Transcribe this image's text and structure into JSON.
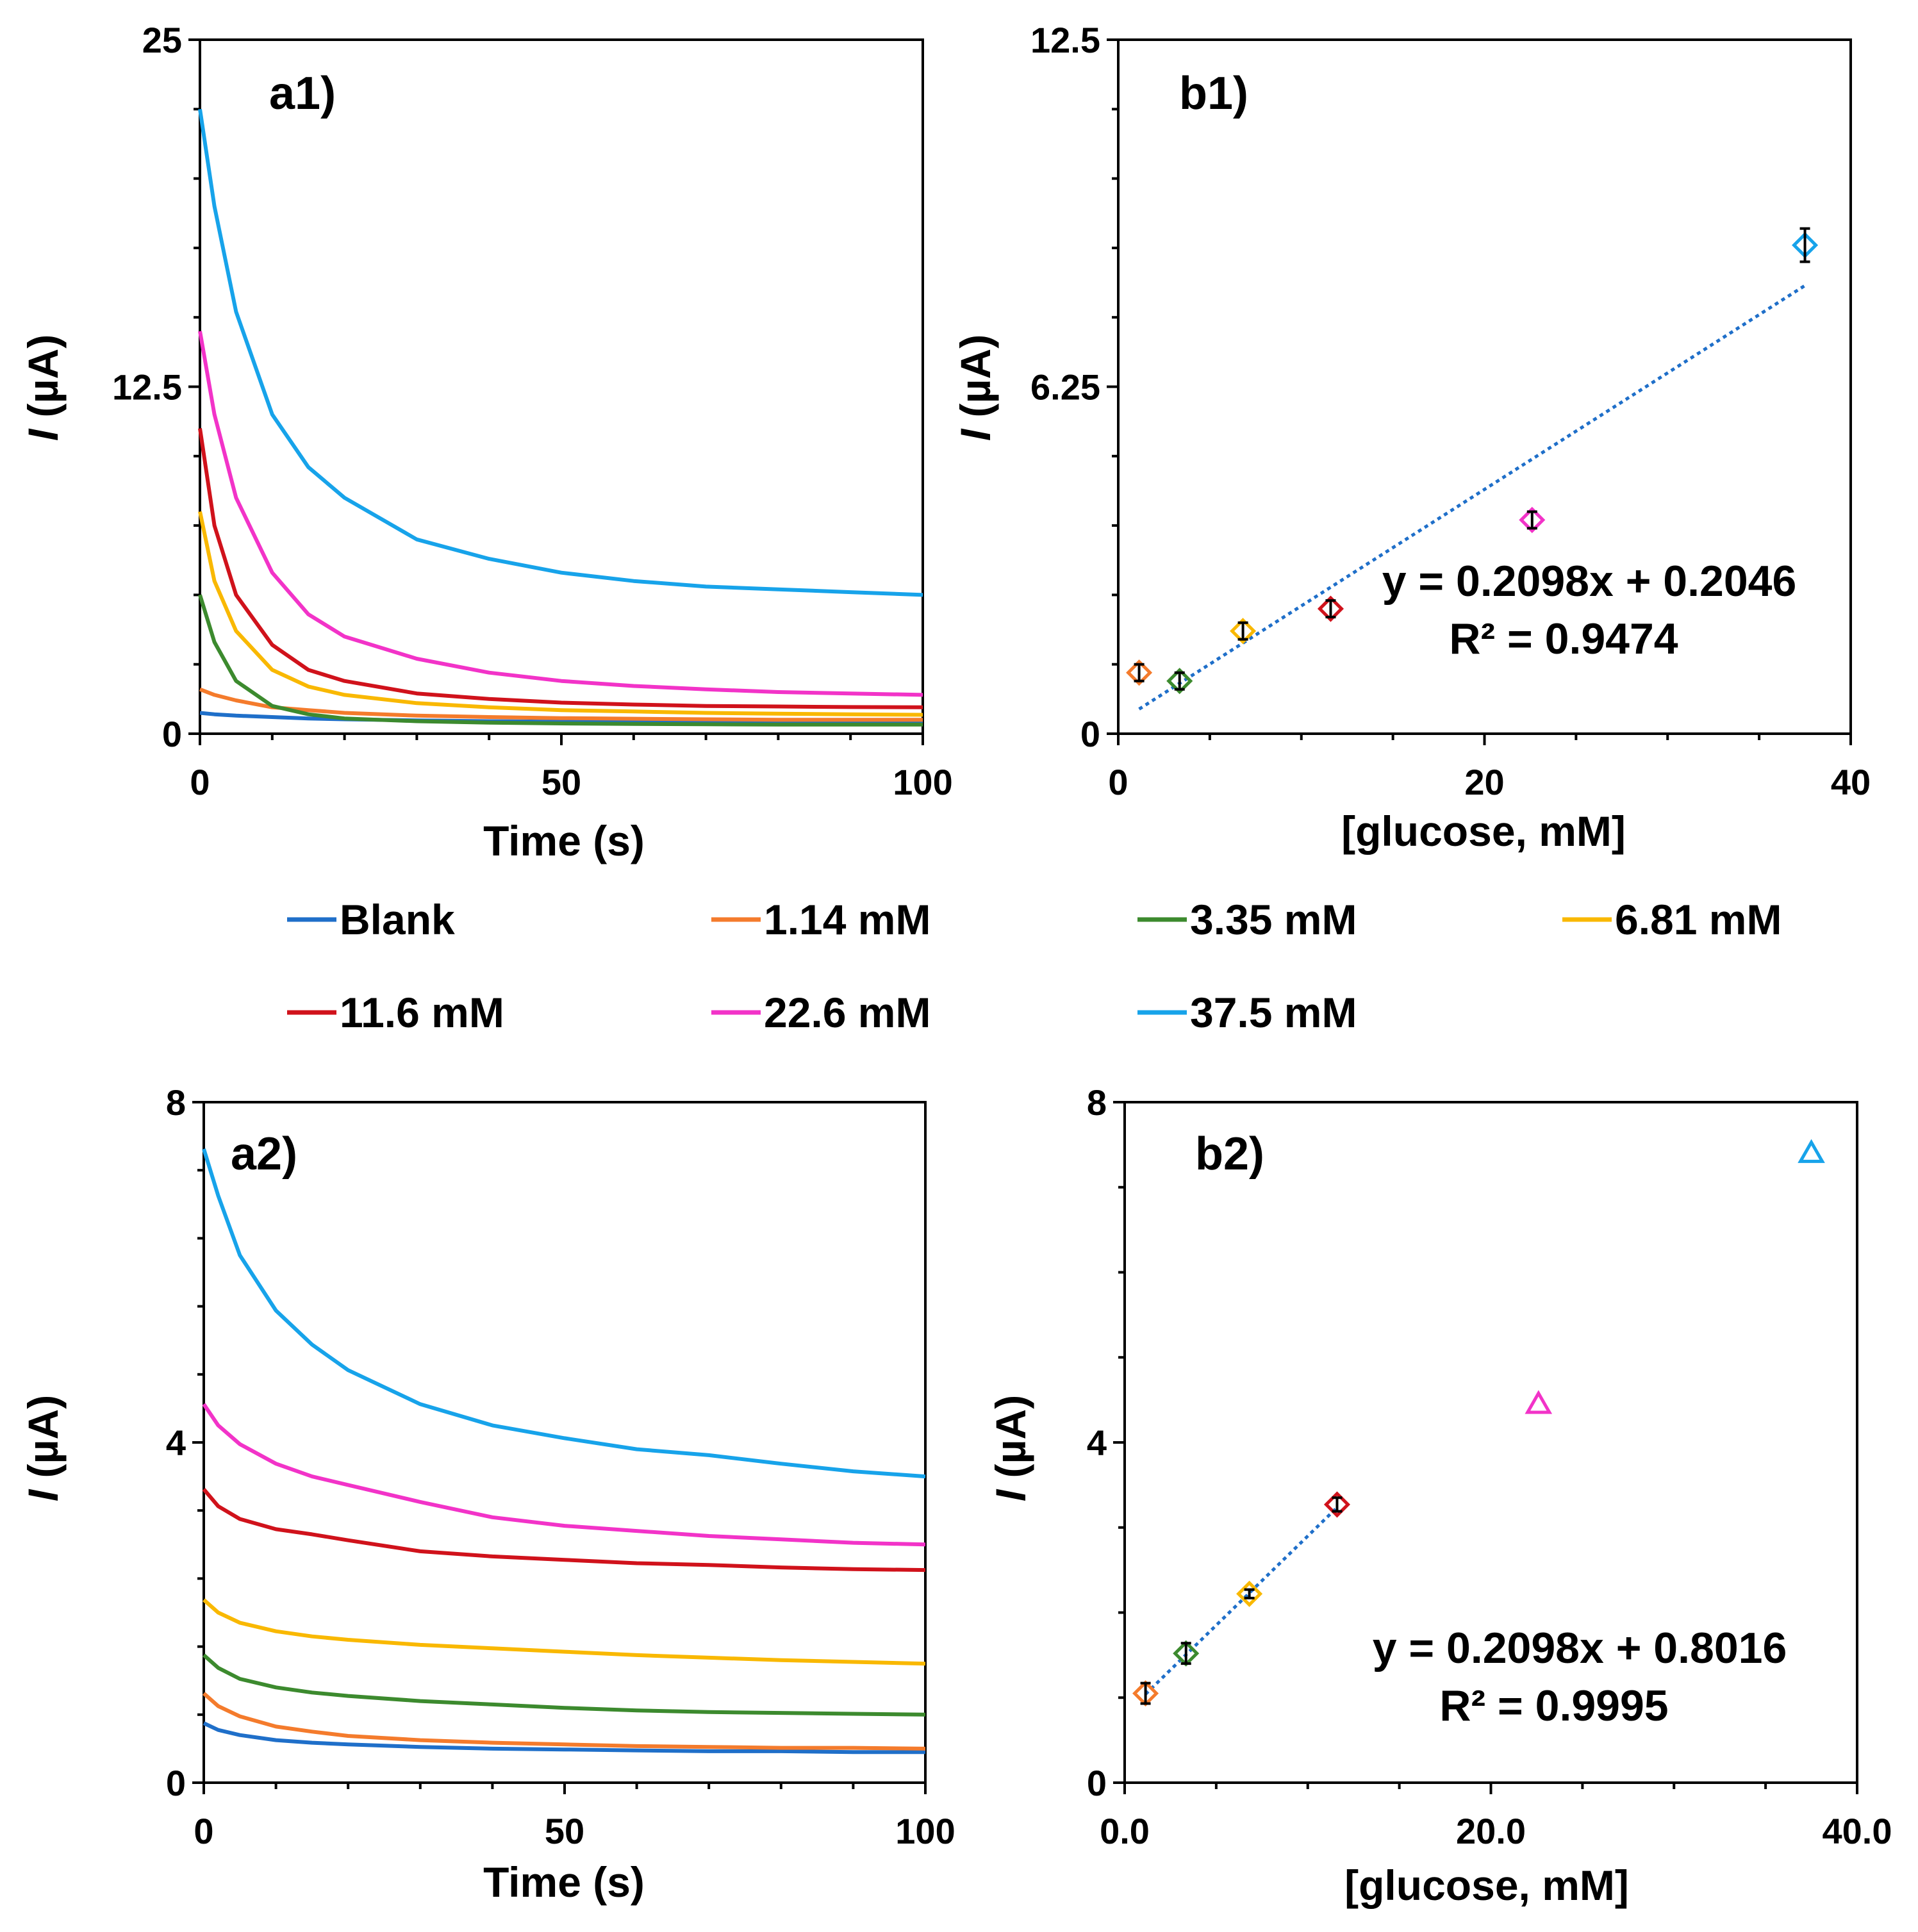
{
  "colors": {
    "blank": "#1f6fc9",
    "c114": "#f47b2c",
    "c335": "#3c8a2e",
    "c681": "#f9b800",
    "c116": "#d0121b",
    "c226": "#f233c8",
    "c375": "#17a3ea",
    "trend": "#1f6fc9"
  },
  "legend": {
    "items": [
      {
        "label": "Blank",
        "color": "#1f6fc9"
      },
      {
        "label": "1.14 mM",
        "color": "#f47b2c"
      },
      {
        "label": "3.35 mM",
        "color": "#3c8a2e"
      },
      {
        "label": "6.81 mM",
        "color": "#f9b800"
      },
      {
        "label": "11.6 mM",
        "color": "#d0121b"
      },
      {
        "label": "22.6 mM",
        "color": "#f233c8"
      },
      {
        "label": "37.5 mM",
        "color": "#17a3ea"
      }
    ]
  },
  "chart_data": [
    {
      "id": "a1",
      "type": "line",
      "panel_label": "a1)",
      "xlabel": "Time (s)",
      "ylabel_italic": "I",
      "ylabel_rest": " (µA)",
      "xlim": [
        0,
        100
      ],
      "ylim": [
        0,
        25
      ],
      "xticks": [
        0,
        50,
        100
      ],
      "xtick_labels": [
        "0",
        "50",
        "100"
      ],
      "yticks": [
        0,
        12.5,
        25
      ],
      "ytick_labels": [
        "0",
        "12.5",
        "25"
      ],
      "x": [
        0,
        2,
        5,
        10,
        15,
        20,
        30,
        40,
        50,
        60,
        70,
        80,
        90,
        100
      ],
      "series": [
        {
          "name": "Blank",
          "color": "#1f6fc9",
          "values": [
            0.75,
            0.7,
            0.65,
            0.6,
            0.55,
            0.52,
            0.48,
            0.45,
            0.43,
            0.42,
            0.41,
            0.4,
            0.39,
            0.38
          ]
        },
        {
          "name": "1.14 mM",
          "color": "#f47b2c",
          "values": [
            1.6,
            1.4,
            1.2,
            0.95,
            0.85,
            0.75,
            0.65,
            0.6,
            0.56,
            0.54,
            0.52,
            0.5,
            0.5,
            0.5
          ]
        },
        {
          "name": "3.35 mM",
          "color": "#3c8a2e",
          "values": [
            5.0,
            3.3,
            1.9,
            1.0,
            0.7,
            0.55,
            0.45,
            0.4,
            0.37,
            0.35,
            0.34,
            0.33,
            0.33,
            0.33
          ]
        },
        {
          "name": "6.81 mM",
          "color": "#f9b800",
          "values": [
            8.0,
            5.5,
            3.7,
            2.3,
            1.7,
            1.4,
            1.1,
            0.95,
            0.85,
            0.8,
            0.75,
            0.72,
            0.7,
            0.68
          ]
        },
        {
          "name": "11.6 mM",
          "color": "#d0121b",
          "values": [
            11.0,
            7.5,
            5.0,
            3.2,
            2.3,
            1.9,
            1.45,
            1.25,
            1.12,
            1.05,
            1.0,
            0.98,
            0.96,
            0.95
          ]
        },
        {
          "name": "22.6 mM",
          "color": "#f233c8",
          "values": [
            14.5,
            11.5,
            8.5,
            5.8,
            4.3,
            3.5,
            2.7,
            2.2,
            1.9,
            1.72,
            1.6,
            1.5,
            1.45,
            1.4
          ]
        },
        {
          "name": "37.5 mM",
          "color": "#17a3ea",
          "values": [
            22.5,
            19.0,
            15.2,
            11.5,
            9.6,
            8.5,
            7.0,
            6.3,
            5.8,
            5.5,
            5.3,
            5.2,
            5.1,
            5.0
          ]
        }
      ]
    },
    {
      "id": "b1",
      "type": "scatter",
      "panel_label": "b1)",
      "xlabel": "[glucose, mM]",
      "ylabel_italic": "I",
      "ylabel_rest": " (µA)",
      "xlim": [
        0,
        40
      ],
      "ylim": [
        0,
        12.5
      ],
      "xticks": [
        0,
        20,
        40
      ],
      "xtick_labels": [
        "0",
        "20",
        "40"
      ],
      "yticks": [
        0,
        6.25,
        12.5
      ],
      "ytick_labels": [
        "0",
        "6.25",
        "12.5"
      ],
      "points": [
        {
          "x": 1.14,
          "y": 1.1,
          "err": 0.15,
          "color": "#f47b2c"
        },
        {
          "x": 3.35,
          "y": 0.95,
          "err": 0.15,
          "color": "#3c8a2e"
        },
        {
          "x": 6.81,
          "y": 1.85,
          "err": 0.15,
          "color": "#f9b800"
        },
        {
          "x": 11.6,
          "y": 2.25,
          "err": 0.15,
          "color": "#d0121b"
        },
        {
          "x": 22.6,
          "y": 3.85,
          "err": 0.15,
          "color": "#f233c8"
        },
        {
          "x": 37.5,
          "y": 8.8,
          "err": 0.3,
          "color": "#17a3ea"
        }
      ],
      "trendline": {
        "slope": 0.2098,
        "intercept": 0.2046,
        "x_range": [
          1.14,
          37.5
        ]
      },
      "equation": "y = 0.2098x + 0.2046",
      "r2": "R² = 0.9474"
    },
    {
      "id": "a2",
      "type": "line",
      "panel_label": "a2)",
      "xlabel": "Time (s)",
      "ylabel_italic": "I",
      "ylabel_rest": " (µA)",
      "xlim": [
        0,
        100
      ],
      "ylim": [
        0,
        8
      ],
      "xticks": [
        0,
        50,
        100
      ],
      "xtick_labels": [
        "0",
        "50",
        "100"
      ],
      "yticks": [
        0,
        4,
        8
      ],
      "ytick_labels": [
        "0",
        "4",
        "8"
      ],
      "x": [
        0,
        2,
        5,
        10,
        15,
        20,
        30,
        40,
        50,
        60,
        70,
        80,
        90,
        100
      ],
      "series": [
        {
          "name": "Blank",
          "color": "#1f6fc9",
          "values": [
            0.7,
            0.62,
            0.56,
            0.5,
            0.47,
            0.45,
            0.42,
            0.4,
            0.39,
            0.38,
            0.37,
            0.37,
            0.36,
            0.36
          ]
        },
        {
          "name": "1.14 mM",
          "color": "#f47b2c",
          "values": [
            1.05,
            0.9,
            0.78,
            0.66,
            0.6,
            0.55,
            0.5,
            0.47,
            0.45,
            0.43,
            0.42,
            0.41,
            0.41,
            0.4
          ]
        },
        {
          "name": "3.35 mM",
          "color": "#3c8a2e",
          "values": [
            1.5,
            1.35,
            1.22,
            1.12,
            1.06,
            1.02,
            0.96,
            0.92,
            0.88,
            0.85,
            0.83,
            0.82,
            0.81,
            0.8
          ]
        },
        {
          "name": "6.81 mM",
          "color": "#f9b800",
          "values": [
            2.15,
            2.0,
            1.88,
            1.78,
            1.72,
            1.68,
            1.62,
            1.58,
            1.54,
            1.5,
            1.47,
            1.44,
            1.42,
            1.4
          ]
        },
        {
          "name": "11.6 mM",
          "color": "#d0121b",
          "values": [
            3.45,
            3.25,
            3.1,
            2.98,
            2.92,
            2.85,
            2.72,
            2.66,
            2.62,
            2.58,
            2.56,
            2.53,
            2.51,
            2.5
          ]
        },
        {
          "name": "22.6 mM",
          "color": "#f233c8",
          "values": [
            4.45,
            4.2,
            3.98,
            3.75,
            3.6,
            3.5,
            3.3,
            3.12,
            3.02,
            2.96,
            2.9,
            2.86,
            2.82,
            2.8
          ]
        },
        {
          "name": "37.5 mM",
          "color": "#17a3ea",
          "values": [
            7.45,
            6.9,
            6.2,
            5.55,
            5.15,
            4.85,
            4.45,
            4.2,
            4.05,
            3.92,
            3.85,
            3.75,
            3.66,
            3.6
          ]
        }
      ]
    },
    {
      "id": "b2",
      "type": "scatter",
      "panel_label": "b2)",
      "xlabel": "[glucose, mM]",
      "ylabel_italic": "I",
      "ylabel_rest": " (µA)",
      "xlim": [
        0,
        40
      ],
      "ylim": [
        0,
        8
      ],
      "xticks": [
        0,
        20,
        40
      ],
      "xtick_labels": [
        "0.0",
        "20.0",
        "40.0"
      ],
      "yticks": [
        0,
        4,
        8
      ],
      "ytick_labels": [
        "0",
        "4",
        "8"
      ],
      "points": [
        {
          "x": 1.14,
          "y": 1.05,
          "err": 0.12,
          "color": "#f47b2c",
          "marker": "diamond"
        },
        {
          "x": 3.35,
          "y": 1.52,
          "err": 0.12,
          "color": "#3c8a2e",
          "marker": "diamond"
        },
        {
          "x": 6.81,
          "y": 2.22,
          "err": 0.05,
          "color": "#f9b800",
          "marker": "diamond"
        },
        {
          "x": 11.6,
          "y": 3.27,
          "err": 0.08,
          "color": "#d0121b",
          "marker": "diamond"
        },
        {
          "x": 22.6,
          "y": 4.45,
          "err": 0,
          "color": "#f233c8",
          "marker": "triangle"
        },
        {
          "x": 37.5,
          "y": 7.4,
          "err": 0,
          "color": "#17a3ea",
          "marker": "triangle"
        }
      ],
      "trendline": {
        "slope": 0.2098,
        "intercept": 0.8016,
        "x_range": [
          1.14,
          11.6
        ]
      },
      "equation": "y = 0.2098x + 0.8016",
      "r2": "R² = 0.9995"
    }
  ]
}
